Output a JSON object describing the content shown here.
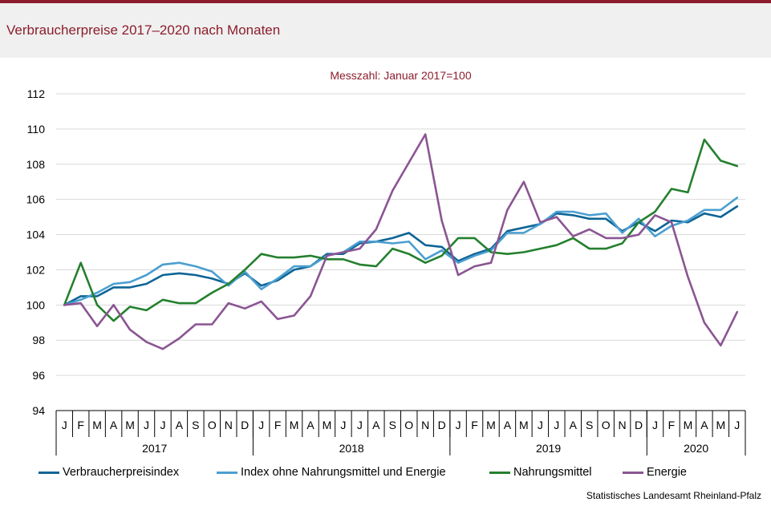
{
  "title": "Verbraucherpreise 2017–2020 nach Monaten",
  "source": "Statistisches Landesamt Rheinland-Pfalz",
  "chart_data": {
    "type": "line",
    "subtitle": "Messzahl: Januar 2017=100",
    "ylim": [
      94,
      112
    ],
    "yticks": [
      94,
      96,
      98,
      100,
      102,
      104,
      106,
      108,
      110,
      112
    ],
    "month_labels": [
      "J",
      "F",
      "M",
      "A",
      "M",
      "J",
      "J",
      "A",
      "S",
      "O",
      "N",
      "D",
      "J",
      "F",
      "M",
      "A",
      "M",
      "J",
      "J",
      "A",
      "S",
      "O",
      "N",
      "D",
      "J",
      "F",
      "M",
      "A",
      "M",
      "J",
      "J",
      "A",
      "S",
      "O",
      "N",
      "D",
      "J",
      "F",
      "M",
      "A",
      "M",
      "J"
    ],
    "years": [
      {
        "label": "2017",
        "months": 12
      },
      {
        "label": "2018",
        "months": 12
      },
      {
        "label": "2019",
        "months": 12
      },
      {
        "label": "2020",
        "months": 6
      }
    ],
    "grid": "horizontal",
    "legend_position": "bottom",
    "series": [
      {
        "name": "Verbraucherpreisindex",
        "color": "#0e6496",
        "values": [
          100.0,
          100.5,
          100.5,
          101.0,
          101.0,
          101.2,
          101.7,
          101.8,
          101.7,
          101.5,
          101.2,
          101.8,
          101.1,
          101.4,
          102.0,
          102.2,
          102.9,
          102.9,
          103.5,
          103.6,
          103.8,
          104.1,
          103.4,
          103.3,
          102.5,
          102.9,
          103.2,
          104.2,
          104.4,
          104.6,
          105.2,
          105.1,
          104.9,
          104.9,
          104.2,
          104.7,
          104.2,
          104.8,
          104.7,
          105.2,
          105.0,
          105.6
        ]
      },
      {
        "name": "Index ohne Nahrungsmittel und Energie",
        "color": "#4b9fd0",
        "values": [
          100.0,
          100.3,
          100.7,
          101.2,
          101.3,
          101.7,
          102.3,
          102.4,
          102.2,
          101.9,
          101.1,
          101.9,
          100.9,
          101.5,
          102.2,
          102.2,
          102.8,
          103.0,
          103.6,
          103.6,
          103.5,
          103.6,
          102.6,
          103.1,
          102.4,
          102.8,
          103.1,
          104.1,
          104.1,
          104.6,
          105.3,
          105.3,
          105.1,
          105.2,
          104.1,
          104.9,
          103.9,
          104.5,
          104.8,
          105.4,
          105.4,
          106.1
        ]
      },
      {
        "name": "Nahrungsmittel",
        "color": "#24802e",
        "values": [
          100.0,
          102.4,
          100.0,
          99.1,
          99.9,
          99.7,
          100.3,
          100.1,
          100.1,
          100.7,
          101.2,
          102.0,
          102.9,
          102.7,
          102.7,
          102.8,
          102.6,
          102.6,
          102.3,
          102.2,
          103.2,
          102.9,
          102.4,
          102.8,
          103.8,
          103.8,
          103.0,
          102.9,
          103.0,
          103.2,
          103.4,
          103.8,
          103.2,
          103.2,
          103.5,
          104.7,
          105.3,
          106.6,
          106.4,
          109.4,
          108.2,
          107.9
        ]
      },
      {
        "name": "Energie",
        "color": "#8b5593",
        "values": [
          100.0,
          100.1,
          98.8,
          100.0,
          98.6,
          97.9,
          97.5,
          98.1,
          98.9,
          98.9,
          100.1,
          99.8,
          100.2,
          99.2,
          99.4,
          100.5,
          102.8,
          103.0,
          103.2,
          104.3,
          106.5,
          108.1,
          109.7,
          104.8,
          101.7,
          102.2,
          102.4,
          105.4,
          107.0,
          104.7,
          105.0,
          103.9,
          104.3,
          103.8,
          103.8,
          104.0,
          105.1,
          104.7,
          101.6,
          99.0,
          97.7,
          99.6
        ]
      }
    ]
  }
}
